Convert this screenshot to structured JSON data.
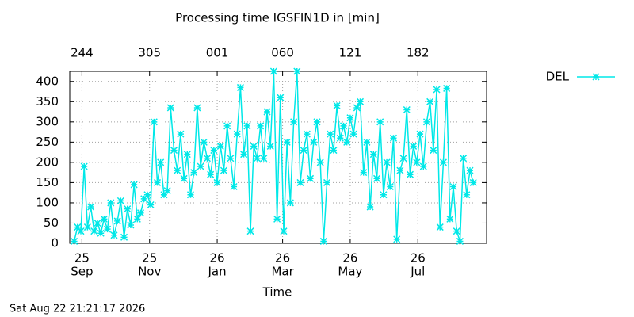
{
  "chart_data": {
    "type": "line",
    "title": "Processing time IGSFIN1D in [min]",
    "xlabel": "Time",
    "timestamp": "Sat Aug 22 21:21:17 2026",
    "xlim": [
      -11,
      365
    ],
    "ylim": [
      0,
      425
    ],
    "yticks": [
      0,
      50,
      100,
      150,
      200,
      250,
      300,
      350,
      400
    ],
    "xticks": [
      {
        "value": 0,
        "label": [
          "25",
          "Sep"
        ]
      },
      {
        "value": 61,
        "label": [
          "25",
          "Nov"
        ]
      },
      {
        "value": 122,
        "label": [
          "26",
          "Jan"
        ]
      },
      {
        "value": 181,
        "label": [
          "26",
          "Mar"
        ]
      },
      {
        "value": 242,
        "label": [
          "26",
          "May"
        ]
      },
      {
        "value": 303,
        "label": [
          "26",
          "Jul"
        ]
      }
    ],
    "x2ticks": [
      {
        "value": 0,
        "label": "244"
      },
      {
        "value": 61,
        "label": "305"
      },
      {
        "value": 122,
        "label": "001"
      },
      {
        "value": 181,
        "label": "060"
      },
      {
        "value": 242,
        "label": "121"
      },
      {
        "value": 303,
        "label": "182"
      }
    ],
    "grid": true,
    "legend": "outside-top-right",
    "x": [
      -7,
      -4,
      -1,
      2,
      5,
      8,
      11,
      14,
      17,
      20,
      23,
      26,
      29,
      32,
      35,
      38,
      41,
      44,
      47,
      50,
      53,
      56,
      59,
      62,
      65,
      68,
      71,
      74,
      77,
      80,
      83,
      86,
      89,
      92,
      95,
      98,
      101,
      104,
      107,
      110,
      113,
      116,
      119,
      122,
      125,
      128,
      131,
      134,
      137,
      140,
      143,
      146,
      149,
      152,
      155,
      158,
      161,
      164,
      167,
      170,
      173,
      176,
      179,
      182,
      185,
      188,
      191,
      194,
      197,
      200,
      203,
      206,
      209,
      212,
      215,
      218,
      221,
      224,
      227,
      230,
      233,
      236,
      239,
      242,
      245,
      248,
      251,
      254,
      257,
      260,
      263,
      266,
      269,
      272,
      275,
      278,
      281,
      284,
      287,
      290,
      293,
      296,
      299,
      302,
      305,
      308,
      311,
      314,
      317,
      320,
      323,
      326,
      329,
      332,
      335,
      338,
      341,
      344,
      347,
      350,
      353
    ],
    "series": [
      {
        "name": "DEL",
        "color": "#00e8e8",
        "values": [
          5,
          40,
          30,
          190,
          40,
          90,
          30,
          50,
          25,
          60,
          35,
          100,
          20,
          55,
          105,
          15,
          85,
          45,
          145,
          60,
          75,
          110,
          120,
          95,
          300,
          150,
          200,
          120,
          130,
          335,
          230,
          180,
          270,
          160,
          220,
          120,
          175,
          335,
          190,
          250,
          210,
          170,
          230,
          150,
          240,
          180,
          290,
          210,
          140,
          270,
          385,
          220,
          290,
          30,
          240,
          210,
          290,
          210,
          325,
          240,
          425,
          60,
          360,
          30,
          250,
          100,
          300,
          425,
          150,
          230,
          270,
          160,
          250,
          300,
          200,
          5,
          150,
          270,
          230,
          340,
          260,
          290,
          250,
          310,
          270,
          335,
          350,
          175,
          250,
          90,
          220,
          160,
          300,
          120,
          200,
          140,
          260,
          10,
          180,
          210,
          330,
          170,
          240,
          200,
          270,
          190,
          300,
          350,
          230,
          380,
          40,
          200,
          383,
          60,
          140,
          30,
          5,
          210,
          120,
          180,
          150
        ]
      }
    ]
  }
}
